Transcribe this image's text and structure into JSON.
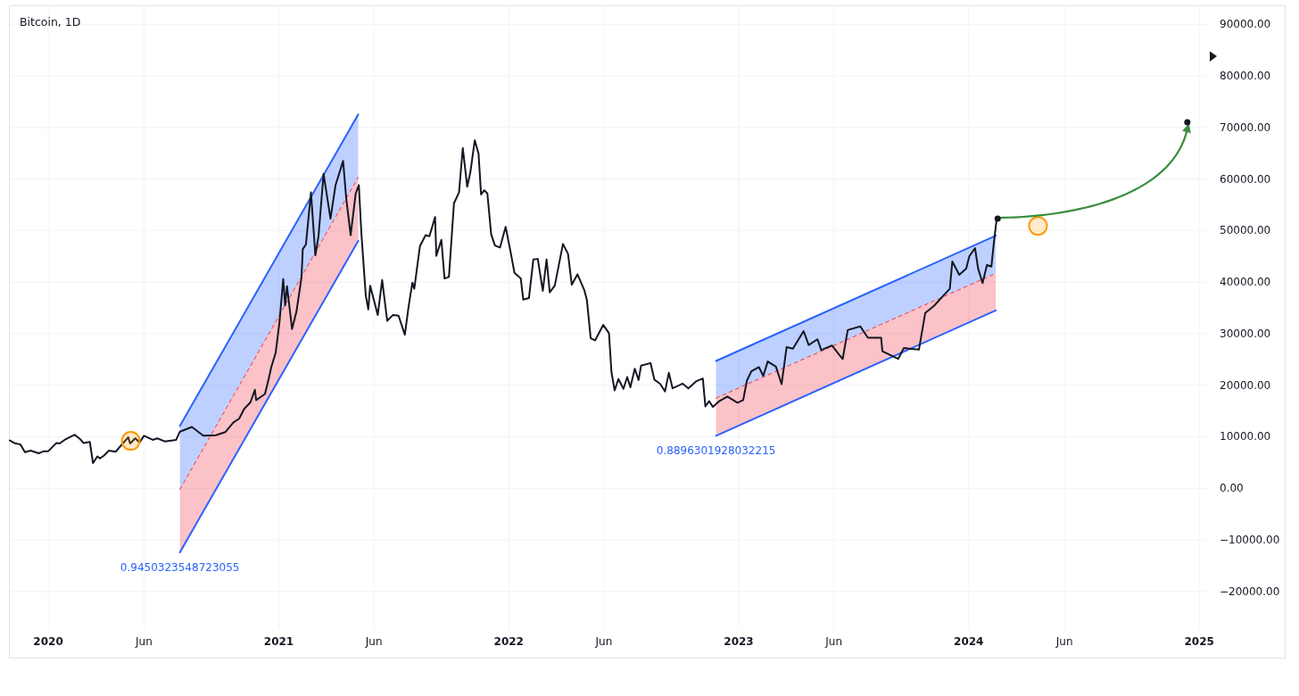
{
  "chart_data": {
    "type": "line",
    "title": "Bitcoin, 1D",
    "xlim": [
      "2019-11-01",
      "2025-01-12"
    ],
    "ylim": [
      -27300,
      93500
    ],
    "xticks": [
      {
        "value": "2020-01-01",
        "label": "2020"
      },
      {
        "value": "2020-06-01",
        "label": "Jun"
      },
      {
        "value": "2021-01-01",
        "label": "2021"
      },
      {
        "value": "2021-06-01",
        "label": "Jun"
      },
      {
        "value": "2022-01-01",
        "label": "2022"
      },
      {
        "value": "2022-06-01",
        "label": "Jun"
      },
      {
        "value": "2023-01-01",
        "label": "2023"
      },
      {
        "value": "2023-06-01",
        "label": "Jun"
      },
      {
        "value": "2024-01-01",
        "label": "2024"
      },
      {
        "value": "2024-06-01",
        "label": "Jun"
      },
      {
        "value": "2025-01-01",
        "label": "2025"
      }
    ],
    "yticks": [
      {
        "value": -20000,
        "label": "−20000.00"
      },
      {
        "value": -10000,
        "label": "−10000.00"
      },
      {
        "value": 0,
        "label": "0.00"
      },
      {
        "value": 10000,
        "label": "10000.00"
      },
      {
        "value": 20000,
        "label": "20000.00"
      },
      {
        "value": 30000,
        "label": "30000.00"
      },
      {
        "value": 40000,
        "label": "40000.00"
      },
      {
        "value": 50000,
        "label": "50000.00"
      },
      {
        "value": 60000,
        "label": "60000.00"
      },
      {
        "value": 70000,
        "label": "70000.00"
      },
      {
        "value": 80000,
        "label": "80000.00"
      },
      {
        "value": 90000,
        "label": "90000.00"
      }
    ],
    "grid": true,
    "series": [
      {
        "type": "line",
        "color": "#2962ff",
        "x": [
          "2020-07-28",
          "2021-05-07"
        ],
        "values": [
          12100,
          72500
        ],
        "lower": [
          -200,
          60300
        ],
        "upper": [
          12100,
          72500
        ]
      },
      {
        "type": "line",
        "color": "#f23645",
        "line_style": "dashed",
        "x": [
          "2020-07-28",
          "2021-05-07"
        ],
        "values": [
          -200,
          60300
        ],
        "lower": [
          -12400,
          48000
        ],
        "upper": [
          -200,
          60300
        ]
      },
      {
        "type": "line",
        "color": "#2962ff",
        "x": [
          "2020-07-28",
          "2021-05-07"
        ],
        "values": [
          -12400,
          48000
        ]
      },
      {
        "type": "line",
        "color": "#2962ff",
        "x": [
          "2022-11-26",
          "2024-02-13"
        ],
        "values": [
          24700,
          49000
        ],
        "lower": [
          17500,
          41700
        ],
        "upper": [
          24700,
          49000
        ]
      },
      {
        "type": "line",
        "color": "#f23645",
        "line_style": "dashed",
        "x": [
          "2022-11-26",
          "2024-02-13"
        ],
        "values": [
          17500,
          41700
        ],
        "lower": [
          10200,
          34500
        ],
        "upper": [
          17500,
          41700
        ]
      },
      {
        "type": "line",
        "color": "#2962ff",
        "x": [
          "2022-11-26",
          "2024-02-13"
        ],
        "values": [
          10200,
          34500
        ]
      },
      {
        "type": "line",
        "color": "#131722",
        "x": [
          "2019-11-01",
          "2019-11-08",
          "2019-11-18",
          "2019-11-25",
          "2019-12-04",
          "2019-12-17",
          "2019-12-25",
          "2020-01-01",
          "2020-01-14",
          "2020-01-19",
          "2020-01-27",
          "2020-02-12",
          "2020-02-20",
          "2020-02-26",
          "2020-03-07",
          "2020-03-12",
          "2020-03-19",
          "2020-03-23",
          "2020-03-30",
          "2020-04-06",
          "2020-04-17",
          "2020-04-29",
          "2020-05-07",
          "2020-05-10",
          "2020-05-18",
          "2020-05-25",
          "2020-06-01",
          "2020-06-15",
          "2020-06-22",
          "2020-07-04",
          "2020-07-22",
          "2020-07-28",
          "2020-08-16",
          "2020-09-03",
          "2020-09-23",
          "2020-10-08",
          "2020-10-21",
          "2020-10-30",
          "2020-11-07",
          "2020-11-17",
          "2020-11-24",
          "2020-11-26",
          "2020-12-10",
          "2020-12-16",
          "2020-12-20",
          "2020-12-27",
          "2021-01-02",
          "2021-01-08",
          "2021-01-11",
          "2021-01-14",
          "2021-01-22",
          "2021-01-29",
          "2021-02-06",
          "2021-02-08",
          "2021-02-13",
          "2021-02-21",
          "2021-02-28",
          "2021-03-05",
          "2021-03-13",
          "2021-03-24",
          "2021-04-01",
          "2021-04-13",
          "2021-04-18",
          "2021-04-25",
          "2021-05-03",
          "2021-05-08",
          "2021-05-12",
          "2021-05-19",
          "2021-05-23",
          "2021-05-26",
          "2021-06-07",
          "2021-06-14",
          "2021-06-22",
          "2021-07-01",
          "2021-07-10",
          "2021-07-20",
          "2021-07-26",
          "2021-08-01",
          "2021-08-04",
          "2021-08-13",
          "2021-08-22",
          "2021-08-28",
          "2021-09-06",
          "2021-09-08",
          "2021-09-16",
          "2021-09-21",
          "2021-09-28",
          "2021-10-06",
          "2021-10-14",
          "2021-10-20",
          "2021-10-27",
          "2021-11-01",
          "2021-11-08",
          "2021-11-14",
          "2021-11-18",
          "2021-11-23",
          "2021-11-28",
          "2021-12-04",
          "2021-12-10",
          "2021-12-18",
          "2021-12-27",
          "2022-01-03",
          "2022-01-10",
          "2022-01-20",
          "2022-01-24",
          "2022-02-02",
          "2022-02-09",
          "2022-02-16",
          "2022-02-24",
          "2022-03-02",
          "2022-03-07",
          "2022-03-15",
          "2022-03-28",
          "2022-04-05",
          "2022-04-11",
          "2022-04-20",
          "2022-05-01",
          "2022-05-05",
          "2022-05-11",
          "2022-05-18",
          "2022-05-31",
          "2022-06-09",
          "2022-06-13",
          "2022-06-18",
          "2022-06-24",
          "2022-07-02",
          "2022-07-08",
          "2022-07-13",
          "2022-07-20",
          "2022-07-26",
          "2022-07-30",
          "2022-08-14",
          "2022-08-20",
          "2022-08-29",
          "2022-09-06",
          "2022-09-12",
          "2022-09-18",
          "2022-10-04",
          "2022-10-13",
          "2022-10-26",
          "2022-11-05",
          "2022-11-09",
          "2022-11-15",
          "2022-11-21",
          "2022-12-01",
          "2022-12-14",
          "2022-12-30",
          "2023-01-08",
          "2023-01-14",
          "2023-01-21",
          "2023-02-02",
          "2023-02-09",
          "2023-02-16",
          "2023-03-01",
          "2023-03-10",
          "2023-03-18",
          "2023-03-28",
          "2023-04-14",
          "2023-04-22",
          "2023-05-06",
          "2023-05-12",
          "2023-05-29",
          "2023-06-10",
          "2023-06-15",
          "2023-06-23",
          "2023-07-13",
          "2023-07-25",
          "2023-08-15",
          "2023-08-17",
          "2023-09-11",
          "2023-09-20",
          "2023-10-14",
          "2023-10-24",
          "2023-11-07",
          "2023-11-22",
          "2023-12-02",
          "2023-12-06",
          "2023-12-17",
          "2023-12-28",
          "2024-01-02",
          "2024-01-11",
          "2024-01-16",
          "2024-01-23",
          "2024-01-30",
          "2024-02-06",
          "2024-02-10",
          "2024-02-14",
          "2024-02-16"
        ],
        "values": [
          9300,
          8800,
          8500,
          7000,
          7300,
          6800,
          7200,
          7200,
          8800,
          8700,
          9400,
          10400,
          9600,
          8800,
          9000,
          4900,
          6200,
          5800,
          6400,
          7300,
          7100,
          8800,
          9900,
          8700,
          9700,
          8900,
          10200,
          9400,
          9700,
          9100,
          9400,
          11000,
          11900,
          10200,
          10300,
          10900,
          12800,
          13500,
          15400,
          16700,
          19100,
          17100,
          18300,
          21300,
          23500,
          26300,
          32200,
          40600,
          35500,
          39200,
          30900,
          34300,
          40900,
          46400,
          47300,
          57400,
          45200,
          48900,
          61000,
          52300,
          58800,
          63500,
          56200,
          49100,
          57200,
          58800,
          49500,
          37400,
          34700,
          39300,
          33600,
          40400,
          32500,
          33600,
          33500,
          29800,
          35300,
          39900,
          38700,
          47000,
          49100,
          48900,
          52600,
          45100,
          48200,
          40700,
          41000,
          55300,
          57400,
          66000,
          58500,
          61300,
          67500,
          64900,
          57000,
          57800,
          57200,
          49300,
          47100,
          46700,
          50700,
          46400,
          41800,
          40700,
          36600,
          36900,
          44400,
          44500,
          38300,
          44400,
          38000,
          39300,
          47400,
          45500,
          39500,
          41500,
          38400,
          36500,
          29100,
          28700,
          31700,
          30100,
          22500,
          19000,
          21200,
          19300,
          21600,
          19600,
          23200,
          21000,
          23800,
          24300,
          21100,
          20300,
          18800,
          22400,
          19400,
          20300,
          19400,
          20800,
          21300,
          15900,
          16900,
          15800,
          16900,
          17800,
          16600,
          17100,
          20900,
          22700,
          23500,
          21800,
          24600,
          23600,
          20200,
          27400,
          27100,
          30500,
          27800,
          28900,
          26800,
          27700,
          25800,
          25100,
          30700,
          31400,
          29200,
          29200,
          26600,
          25100,
          27200,
          26900,
          34000,
          35400,
          37400,
          38700,
          44000,
          41400,
          42600,
          45000,
          46600,
          42600,
          39800,
          43300,
          43000,
          47700,
          51800,
          52300
        ]
      },
      {
        "type": "bubble",
        "color": "#ff9800",
        "x": [
          "2020-05-11",
          "2024-04-20"
        ],
        "values": [
          9200,
          50900
        ],
        "sizes": [
          1,
          1
        ]
      },
      {
        "type": "scatter",
        "color": "#131722",
        "marker": "circle",
        "x": [
          "2024-02-16",
          "2024-12-13"
        ],
        "values": [
          52300,
          71000
        ]
      }
    ],
    "annotations": [
      {
        "text": "0.9450323548723055",
        "x": "2020-07-28",
        "y": -12400
      },
      {
        "text": "0.8896301928032215",
        "x": "2022-11-26",
        "y": 10200
      }
    ]
  }
}
